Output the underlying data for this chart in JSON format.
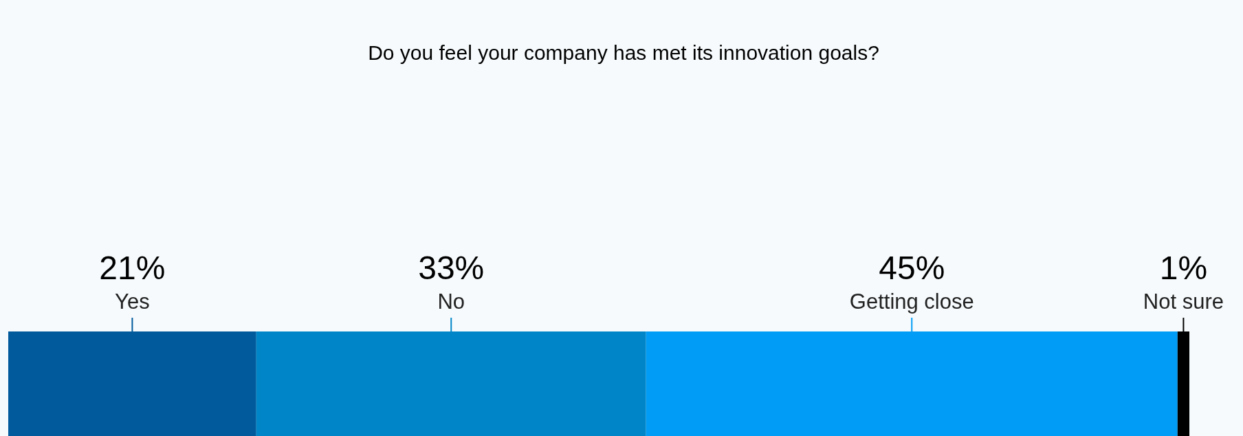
{
  "chart_data": {
    "type": "bar",
    "orientation": "horizontal",
    "stacked": true,
    "title": "Do you feel your company has met its innovation goals?",
    "categories": [
      null
    ],
    "series": [
      {
        "name": "Yes",
        "color": "#005a9c",
        "values": [
          21
        ],
        "value_labels": [
          "21%"
        ]
      },
      {
        "name": "No",
        "color": "#0086c8",
        "values": [
          33
        ],
        "value_labels": [
          "33%"
        ]
      },
      {
        "name": "Getting close",
        "color": "#009cf5",
        "values": [
          45
        ],
        "value_labels": [
          "45%"
        ]
      },
      {
        "name": "Not sure",
        "color": "#000000",
        "values": [
          1
        ],
        "value_labels": [
          "1%"
        ]
      }
    ],
    "legend": false
  }
}
